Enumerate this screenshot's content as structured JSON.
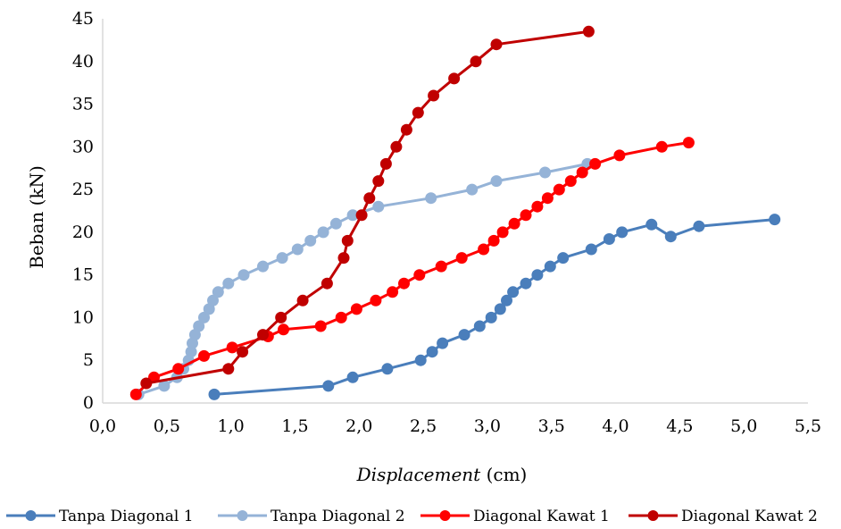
{
  "chart_data": {
    "type": "line",
    "title": "",
    "xlabel_italic": "Displacement",
    "xlabel_unit": " (cm)",
    "ylabel": "Beban (kN)",
    "xlim": [
      0,
      5.5
    ],
    "ylim": [
      0,
      45
    ],
    "x_ticks": [
      "0,0",
      "0,5",
      "1,0",
      "1,5",
      "2,0",
      "2,5",
      "3,0",
      "3,5",
      "4,0",
      "4,5",
      "5,0",
      "5,5"
    ],
    "y_ticks": [
      "0",
      "5",
      "10",
      "15",
      "20",
      "25",
      "30",
      "35",
      "40",
      "45"
    ],
    "grid": "none",
    "legend_position": "bottom",
    "series": [
      {
        "name": "Tanpa Diagonal 1",
        "color": "#4a7ebb",
        "points": [
          [
            0.87,
            1
          ],
          [
            1.76,
            2
          ],
          [
            1.95,
            3
          ],
          [
            2.22,
            4
          ],
          [
            2.48,
            5
          ],
          [
            2.57,
            6
          ],
          [
            2.65,
            7
          ],
          [
            2.82,
            8
          ],
          [
            2.94,
            9
          ],
          [
            3.03,
            10
          ],
          [
            3.1,
            11
          ],
          [
            3.15,
            12
          ],
          [
            3.2,
            13
          ],
          [
            3.3,
            14
          ],
          [
            3.39,
            15
          ],
          [
            3.49,
            16
          ],
          [
            3.59,
            17
          ],
          [
            3.81,
            18
          ],
          [
            3.95,
            19.2
          ],
          [
            4.05,
            20
          ],
          [
            4.28,
            20.9
          ],
          [
            4.43,
            19.5
          ],
          [
            4.65,
            20.7
          ],
          [
            5.24,
            21.5
          ]
        ]
      },
      {
        "name": "Tanpa Diagonal 2",
        "color": "#95b3d7",
        "points": [
          [
            0.28,
            1
          ],
          [
            0.48,
            2
          ],
          [
            0.58,
            3
          ],
          [
            0.63,
            4
          ],
          [
            0.67,
            5
          ],
          [
            0.69,
            6
          ],
          [
            0.7,
            7
          ],
          [
            0.72,
            8
          ],
          [
            0.75,
            9
          ],
          [
            0.79,
            10
          ],
          [
            0.83,
            11
          ],
          [
            0.86,
            12
          ],
          [
            0.9,
            13
          ],
          [
            0.98,
            14
          ],
          [
            1.1,
            15
          ],
          [
            1.25,
            16
          ],
          [
            1.4,
            17
          ],
          [
            1.52,
            18
          ],
          [
            1.62,
            19
          ],
          [
            1.72,
            20
          ],
          [
            1.82,
            21
          ],
          [
            1.95,
            22
          ],
          [
            2.15,
            23
          ],
          [
            2.56,
            24
          ],
          [
            2.88,
            25
          ],
          [
            3.07,
            26
          ],
          [
            3.45,
            27
          ],
          [
            3.78,
            28
          ]
        ]
      },
      {
        "name": "Diagonal Kawat 1",
        "color": "#ff0000",
        "points": [
          [
            0.26,
            1
          ],
          [
            0.4,
            3
          ],
          [
            0.59,
            4
          ],
          [
            0.79,
            5.5
          ],
          [
            1.01,
            6.5
          ],
          [
            1.29,
            7.8
          ],
          [
            1.41,
            8.6
          ],
          [
            1.7,
            9
          ],
          [
            1.86,
            10
          ],
          [
            1.98,
            11
          ],
          [
            2.13,
            12
          ],
          [
            2.26,
            13
          ],
          [
            2.35,
            14
          ],
          [
            2.47,
            15
          ],
          [
            2.64,
            16
          ],
          [
            2.8,
            17
          ],
          [
            2.97,
            18
          ],
          [
            3.05,
            19
          ],
          [
            3.12,
            20
          ],
          [
            3.21,
            21
          ],
          [
            3.3,
            22
          ],
          [
            3.39,
            23
          ],
          [
            3.47,
            24
          ],
          [
            3.56,
            25
          ],
          [
            3.65,
            26
          ],
          [
            3.74,
            27
          ],
          [
            3.84,
            28
          ],
          [
            4.03,
            29
          ],
          [
            4.36,
            30
          ],
          [
            4.57,
            30.5
          ]
        ]
      },
      {
        "name": "Diagonal Kawat 2",
        "color": "#c00000",
        "points": [
          [
            0.34,
            2.3
          ],
          [
            0.98,
            4
          ],
          [
            1.09,
            6
          ],
          [
            1.25,
            8
          ],
          [
            1.39,
            10
          ],
          [
            1.56,
            12
          ],
          [
            1.75,
            14
          ],
          [
            1.88,
            17
          ],
          [
            1.91,
            19
          ],
          [
            2.02,
            22
          ],
          [
            2.08,
            24
          ],
          [
            2.15,
            26
          ],
          [
            2.21,
            28
          ],
          [
            2.29,
            30
          ],
          [
            2.37,
            32
          ],
          [
            2.46,
            34
          ],
          [
            2.58,
            36
          ],
          [
            2.74,
            38
          ],
          [
            2.91,
            40
          ],
          [
            3.07,
            42
          ],
          [
            3.79,
            43.5
          ]
        ]
      }
    ]
  }
}
